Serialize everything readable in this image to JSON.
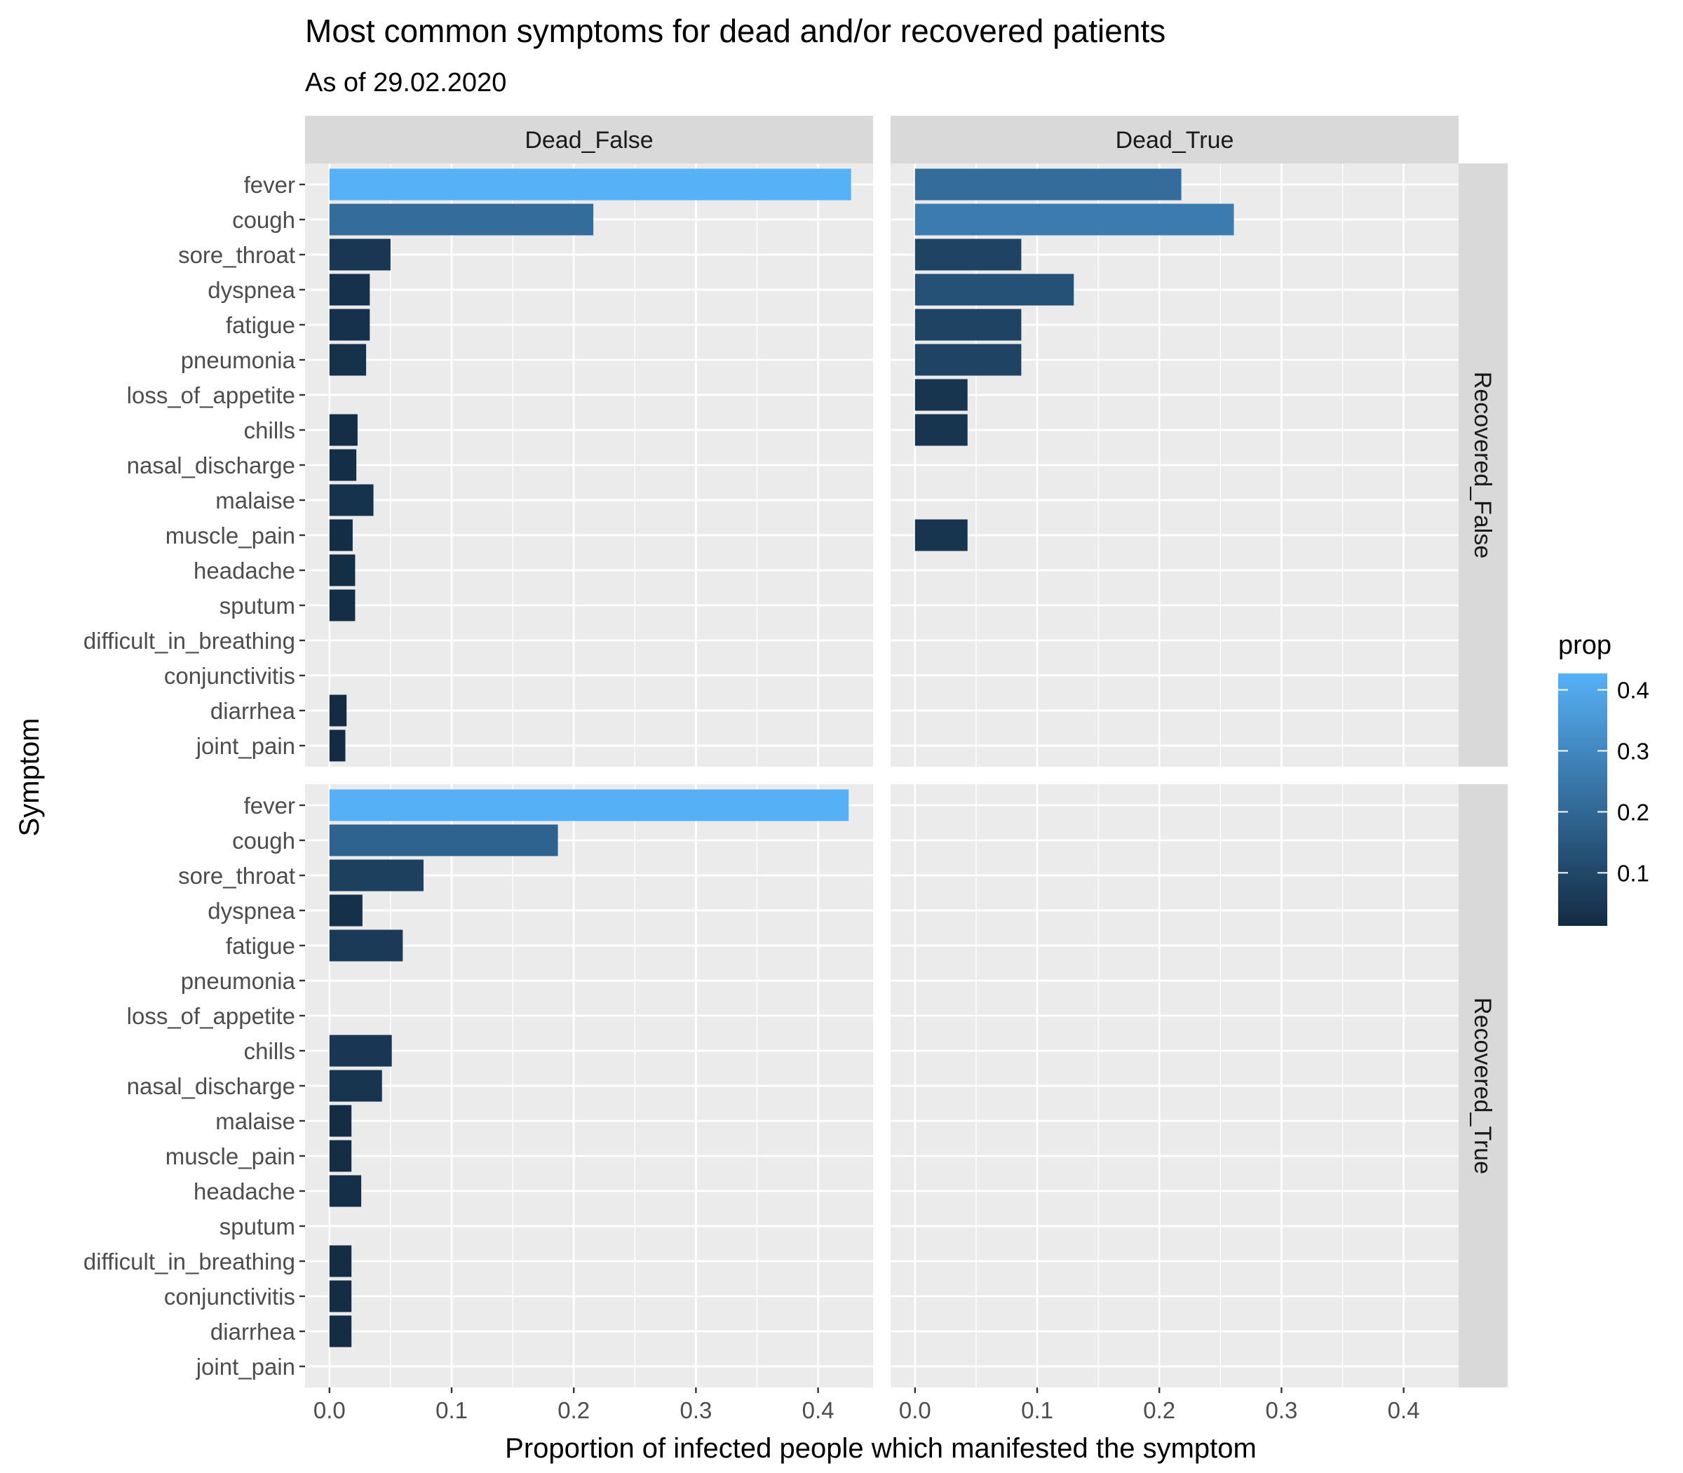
{
  "chart_data": {
    "type": "bar",
    "orientation": "horizontal",
    "title": "Most common symptoms for dead and/or recovered patients",
    "subtitle": "As of 29.02.2020",
    "xlabel": "Proportion of infected people which manifested the symptom",
    "ylabel": "Symptom",
    "xlim": [
      -0.02,
      0.445
    ],
    "x_ticks": [
      0.0,
      0.1,
      0.2,
      0.3,
      0.4
    ],
    "x_tick_labels": [
      "0.0",
      "0.1",
      "0.2",
      "0.3",
      "0.4"
    ],
    "grid": true,
    "categories": [
      "fever",
      "cough",
      "sore_throat",
      "dyspnea",
      "fatigue",
      "pneumonia",
      "loss_of_appetite",
      "chills",
      "nasal_discharge",
      "malaise",
      "muscle_pain",
      "headache",
      "sputum",
      "difficult_in_breathing",
      "conjunctivitis",
      "diarrhea",
      "joint_pain"
    ],
    "facet_columns": [
      "Dead_False",
      "Dead_True"
    ],
    "facet_rows": [
      "Recovered_False",
      "Recovered_True"
    ],
    "panels": [
      {
        "col": "Dead_False",
        "row": "Recovered_False",
        "values": [
          0.427,
          0.216,
          0.05,
          0.033,
          0.033,
          0.03,
          null,
          0.023,
          0.022,
          0.036,
          0.019,
          0.021,
          0.021,
          null,
          null,
          0.014,
          0.013
        ]
      },
      {
        "col": "Dead_True",
        "row": "Recovered_False",
        "values": [
          0.218,
          0.261,
          0.087,
          0.13,
          0.087,
          0.087,
          0.043,
          0.043,
          null,
          null,
          0.043,
          null,
          null,
          null,
          null,
          null,
          null
        ]
      },
      {
        "col": "Dead_False",
        "row": "Recovered_True",
        "values": [
          0.425,
          0.187,
          0.077,
          0.027,
          0.06,
          null,
          null,
          0.051,
          0.043,
          0.018,
          0.018,
          0.026,
          null,
          0.018,
          0.018,
          0.018,
          null
        ]
      },
      {
        "col": "Dead_True",
        "row": "Recovered_True",
        "values": [
          null,
          null,
          null,
          null,
          null,
          null,
          null,
          null,
          null,
          null,
          null,
          null,
          null,
          null,
          null,
          null,
          null
        ]
      }
    ],
    "legend": {
      "title": "prop",
      "position": "right",
      "type": "colorbar",
      "range": [
        0.013,
        0.427
      ],
      "ticks": [
        0.1,
        0.2,
        0.3,
        0.4
      ],
      "tick_labels": [
        "0.1",
        "0.2",
        "0.3",
        "0.4"
      ],
      "low_color": "#132B43",
      "high_color": "#56B1F7"
    },
    "colors": {
      "panel_background": "#EBEBEB",
      "grid": "#FFFFFF",
      "strip_background": "#D9D9D9"
    }
  }
}
